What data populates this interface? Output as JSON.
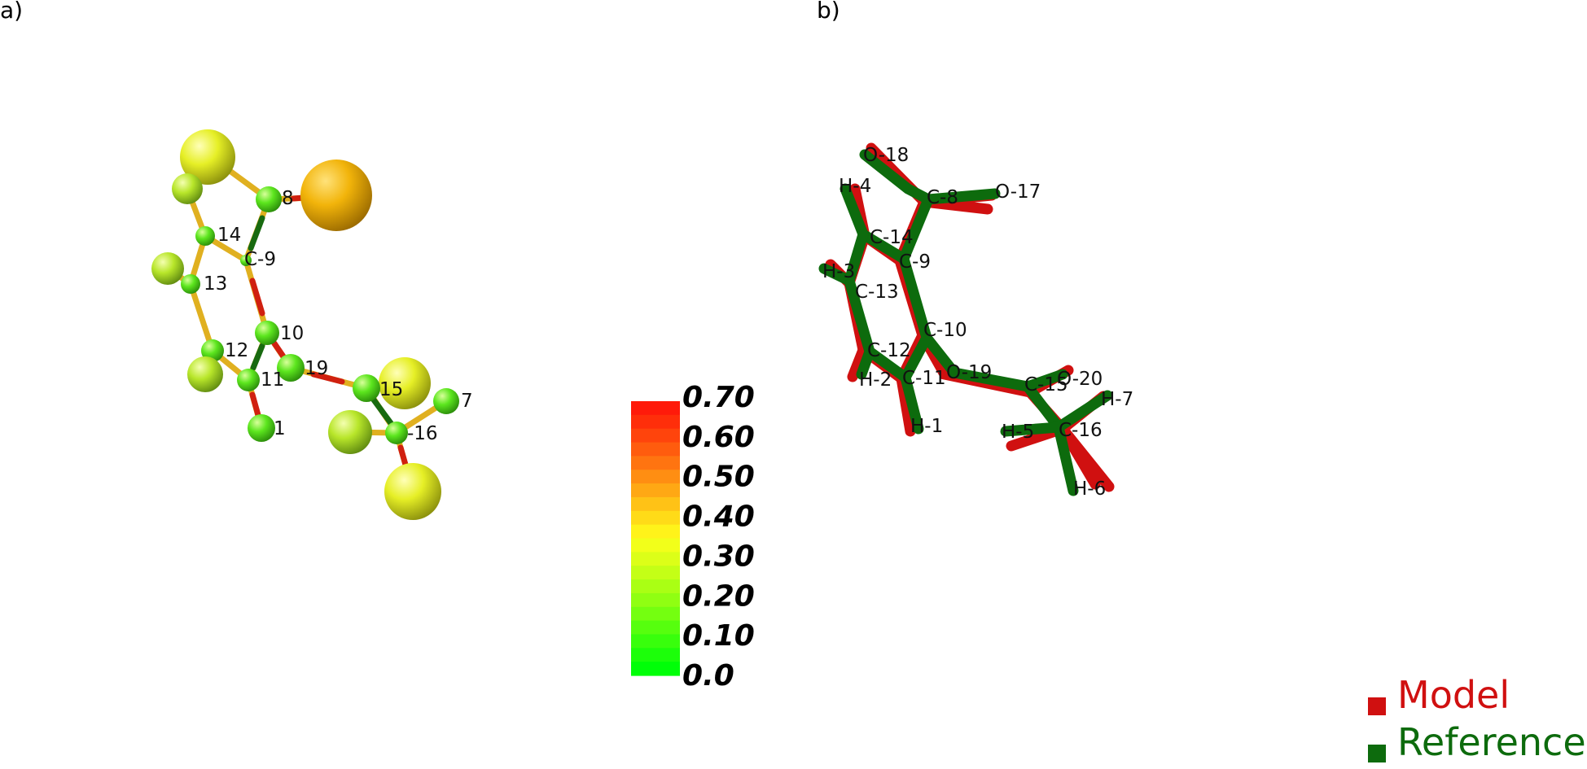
{
  "panels": {
    "a": {
      "label": "a)"
    },
    "b": {
      "label": "b)"
    }
  },
  "panel_a": {
    "atom_labels": [
      "8",
      "14",
      "C-9",
      "13",
      "10",
      "12",
      "11",
      "19",
      "15",
      "7",
      "-16",
      "1"
    ],
    "colorbar": {
      "ticks": [
        "0.70",
        "0.60",
        "0.50",
        "0.40",
        "0.30",
        "0.20",
        "0.10",
        "0.0"
      ],
      "colors": [
        "#ff1a0a",
        "#ff2e0a",
        "#ff440c",
        "#ff5c0e",
        "#ff7410",
        "#ff8e12",
        "#ffa814",
        "#ffc216",
        "#ffdb18",
        "#fff31a",
        "#f2ff1a",
        "#dcff18",
        "#c4ff16",
        "#aaff14",
        "#90ff12",
        "#74ff10",
        "#56ff0e",
        "#38ff0c",
        "#1cff0a",
        "#00ff08"
      ]
    }
  },
  "panel_b": {
    "atom_labels": [
      "O-18",
      "H-4",
      "C-8",
      "O-17",
      "C-14",
      "C-9",
      "H-3",
      "C-13",
      "C-10",
      "C-12",
      "O-19",
      "H-2",
      "C-11",
      "C-15",
      "O-20",
      "H-7",
      "H-1",
      "H-5",
      "C-16",
      "H-6"
    ],
    "legend": [
      {
        "label": "Model",
        "color": "#d01010"
      },
      {
        "label": "Reference",
        "color": "#0d6b0d"
      }
    ]
  }
}
